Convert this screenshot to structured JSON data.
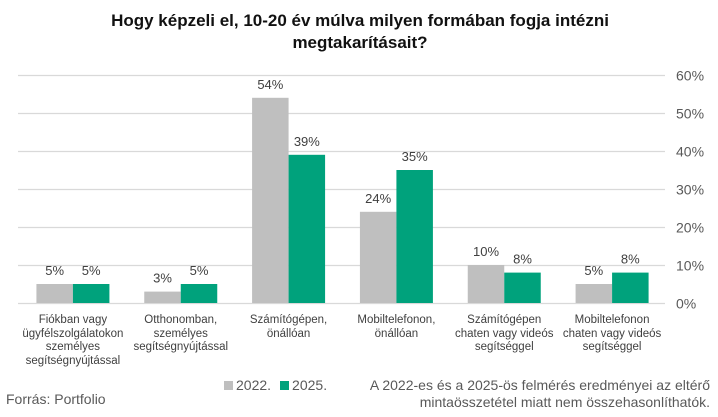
{
  "chart_data": {
    "type": "bar",
    "title": "Hogy képzeli el, 10-20 év múlva milyen formában fogja intézni megtakarításait?",
    "title_lines": [
      "Hogy képzeli el, 10-20 év múlva milyen formában fogja intézni",
      "megtakarításait?"
    ],
    "categories": [
      [
        "Fiókban vagy",
        "ügyfélszolgálatokon",
        "személyes",
        "segítségnyújtással"
      ],
      [
        "Otthonomban,",
        "személyes",
        "segítségnyújtással"
      ],
      [
        "Számítógépen,",
        "önállóan"
      ],
      [
        "Mobiltelefonon,",
        "önállóan"
      ],
      [
        "Számítógépen",
        "chaten vagy videós",
        "segítséggel"
      ],
      [
        "Mobiltelefonon",
        "chaten vagy videós",
        "segítséggel"
      ]
    ],
    "series": [
      {
        "name": "2022.",
        "color": "#bfbfbf",
        "values": [
          5,
          3,
          54,
          24,
          10,
          5
        ],
        "labels": [
          "5%",
          "3%",
          "54%",
          "24%",
          "10%",
          "5%"
        ]
      },
      {
        "name": "2025.",
        "color": "#00a27c",
        "values": [
          5,
          5,
          39,
          35,
          8,
          8
        ],
        "labels": [
          "5%",
          "5%",
          "39%",
          "35%",
          "8%",
          "8%"
        ]
      }
    ],
    "ylim": [
      0,
      60
    ],
    "yticks": [
      "0%",
      "10%",
      "20%",
      "30%",
      "40%",
      "50%",
      "60%"
    ],
    "y_axis_side": "right",
    "grid": true,
    "legend_position": "bottom",
    "xlabel": "",
    "ylabel": ""
  },
  "footer": {
    "source": "Forrás: Portfolio",
    "note_lines": [
      "A 2022-es és a 2025-ös felmérés eredményei az eltérő",
      "mintaösszetétel miatt nem összehasonlíthatók."
    ]
  }
}
